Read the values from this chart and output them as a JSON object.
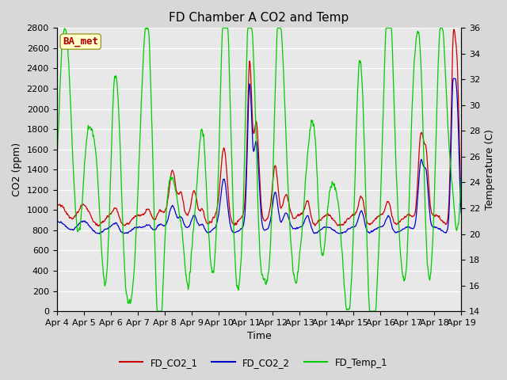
{
  "title": "FD Chamber A CO2 and Temp",
  "xlabel": "Time",
  "ylabel_left": "CO2 (ppm)",
  "ylabel_right": "Temperature (C)",
  "ylim_left": [
    0,
    2800
  ],
  "ylim_right": [
    14,
    36
  ],
  "yticks_left": [
    0,
    200,
    400,
    600,
    800,
    1000,
    1200,
    1400,
    1600,
    1800,
    2000,
    2200,
    2400,
    2600,
    2800
  ],
  "yticks_right": [
    14,
    16,
    18,
    20,
    22,
    24,
    26,
    28,
    30,
    32,
    34,
    36
  ],
  "xticklabels": [
    "Apr 4",
    "Apr 5",
    "Apr 6",
    "Apr 7",
    "Apr 8",
    "Apr 9",
    "Apr 10",
    "Apr 11",
    "Apr 12",
    "Apr 13",
    "Apr 14",
    "Apr 15",
    "Apr 16",
    "Apr 17",
    "Apr 18",
    "Apr 19"
  ],
  "color_co2_1": "#cc0000",
  "color_co2_2": "#0000cc",
  "color_temp": "#00cc00",
  "legend_labels": [
    "FD_CO2_1",
    "FD_CO2_2",
    "FD_Temp_1"
  ],
  "watermark_text": "BA_met",
  "watermark_color": "#aa0000",
  "watermark_bg": "#ffffcc",
  "fig_bg_color": "#d8d8d8",
  "plot_bg_color": "#e8e8e8",
  "grid_color": "#ffffff",
  "title_fontsize": 11,
  "label_fontsize": 9,
  "tick_fontsize": 8
}
